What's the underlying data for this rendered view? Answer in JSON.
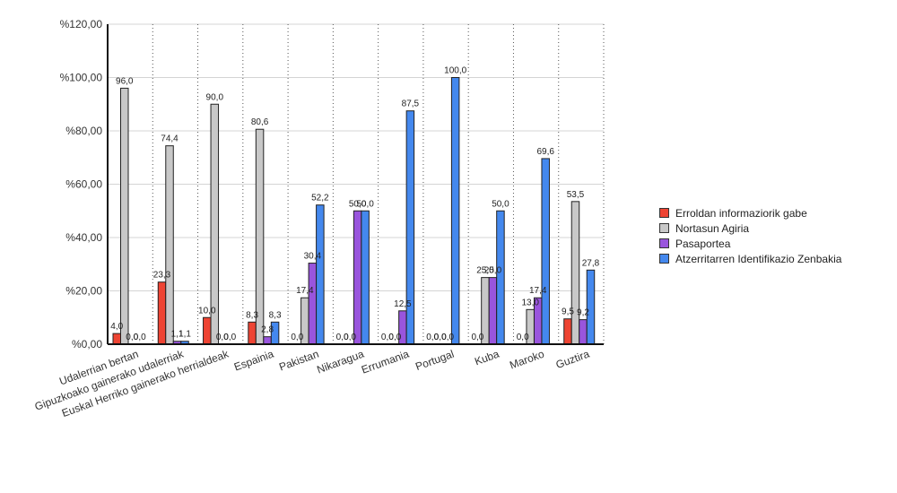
{
  "chart_data": {
    "type": "bar",
    "categories": [
      "Udalerrian bertan",
      "Gipuzkoako gainerako udalerriak",
      "Euskal Herriko gainerako herrialdeak",
      "Espainia",
      "Pakistan",
      "Nikaragua",
      "Errumania",
      "Portugal",
      "Kuba",
      "Maroko",
      "Guztira"
    ],
    "series": [
      {
        "name": "Erroldan informaziorik gabe",
        "color": "#ee4433",
        "values": [
          4.0,
          23.3,
          10.0,
          8.3,
          0.0,
          0.0,
          0.0,
          0.0,
          0.0,
          0.0,
          9.5
        ],
        "labels": [
          "4,0",
          "23,3",
          "10,0",
          "8,3",
          "0,0",
          "0,0",
          "0,0",
          "0,0",
          "0,0",
          "0,0",
          "9,5"
        ]
      },
      {
        "name": "Nortasun Agiria",
        "color": "#c8c8c8",
        "values": [
          96.0,
          74.4,
          90.0,
          80.6,
          17.4,
          0.0,
          0.0,
          0.0,
          25.0,
          13.0,
          53.5
        ],
        "labels": [
          "96,0",
          "74,4",
          "90,0",
          "80,6",
          "17,4",
          "0,0",
          "0,0",
          "0,0",
          "25,0",
          "13,0",
          "53,5"
        ]
      },
      {
        "name": "Pasaportea",
        "color": "#9955dd",
        "values": [
          0.0,
          1.1,
          0.0,
          2.8,
          30.4,
          50.0,
          12.5,
          0.0,
          25.0,
          17.4,
          9.2
        ],
        "labels": [
          "0,0",
          "1,1",
          "0,0",
          "2,8",
          "30,4",
          "50,0",
          "12,5",
          "0,0",
          "25,0",
          "17,4",
          "9,2"
        ]
      },
      {
        "name": "Atzerritarren Identifikazio Zenbakia",
        "color": "#4488ee",
        "values": [
          0.0,
          1.1,
          0.0,
          8.3,
          52.2,
          50.0,
          87.5,
          100.0,
          50.0,
          69.6,
          27.8
        ],
        "labels": [
          "0,0",
          "1,1",
          "0,0",
          "8,3",
          "52,2",
          "50,0",
          "87,5",
          "100,0",
          "50,0",
          "69,6",
          "27,8"
        ]
      }
    ],
    "y_ticks": [
      "%0,00",
      "%20,00",
      "%40,00",
      "%60,00",
      "%80,00",
      "%100,00",
      "%120,00"
    ],
    "ylim": [
      0,
      120
    ],
    "y_step": 20,
    "grid": {
      "horizontal": true,
      "vertical_dotted": true
    },
    "legend": "right",
    "title": "",
    "xlabel": "",
    "ylabel": ""
  }
}
